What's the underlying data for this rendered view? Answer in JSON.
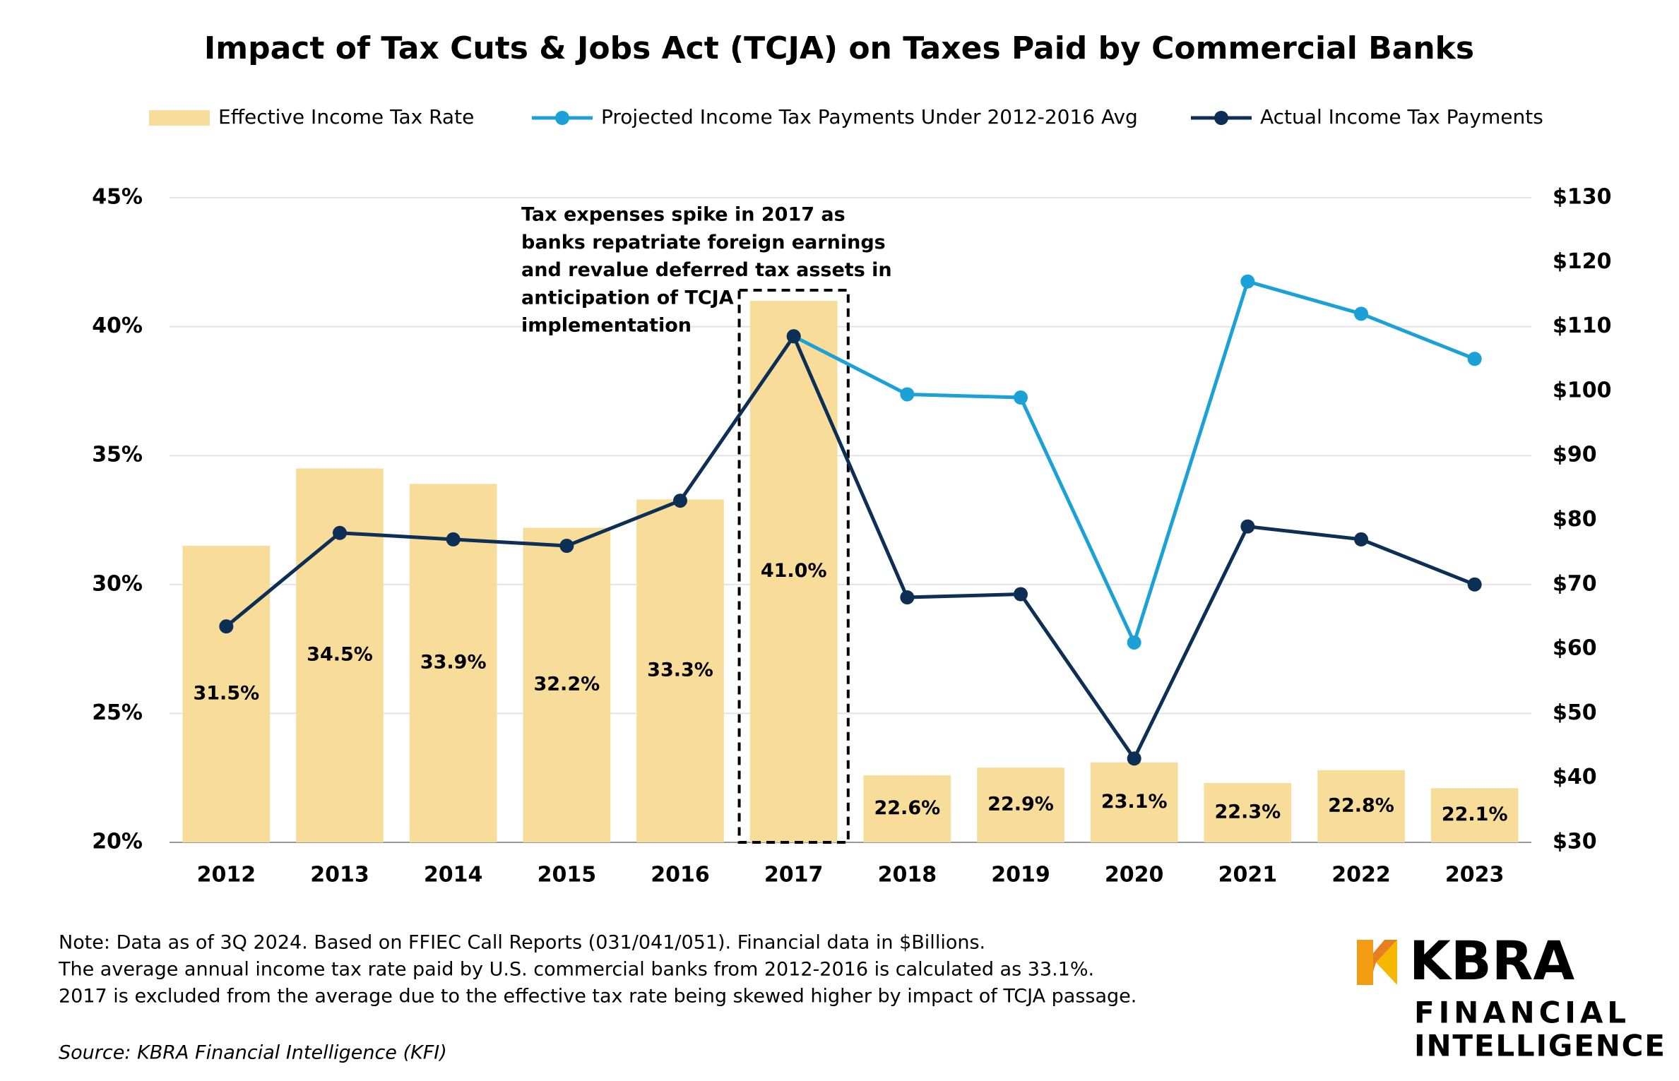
{
  "chart_data": {
    "type": "bar",
    "title": "Impact of Tax Cuts & Jobs Act (TCJA) on Taxes Paid by Commercial Banks",
    "categories": [
      "2012",
      "2013",
      "2014",
      "2015",
      "2016",
      "2017",
      "2018",
      "2019",
      "2020",
      "2021",
      "2022",
      "2023"
    ],
    "series": [
      {
        "name": "Effective Income Tax Rate",
        "type": "bar",
        "color": "#f8dc9a",
        "values": [
          31.5,
          34.5,
          33.9,
          32.2,
          33.3,
          41.0,
          22.6,
          22.9,
          23.1,
          22.3,
          22.8,
          22.1
        ],
        "value_labels": [
          "31.5%",
          "34.5%",
          "33.9%",
          "32.2%",
          "33.3%",
          "41.0%",
          "22.6%",
          "22.9%",
          "23.1%",
          "22.3%",
          "22.8%",
          "22.1%"
        ]
      },
      {
        "name": "Projected Income Tax Payments Under 2012-2016 Avg",
        "type": "line",
        "axis": "y2",
        "color": "#1ba1d8",
        "values": [
          null,
          null,
          null,
          null,
          null,
          108.5,
          99.5,
          99,
          61,
          117,
          112,
          105
        ]
      },
      {
        "name": "Actual Income Tax Payments",
        "type": "line",
        "axis": "y2",
        "color": "#0d2e55",
        "values": [
          63.5,
          78,
          77,
          76,
          83,
          108.5,
          68,
          68.5,
          43,
          79,
          77,
          70
        ]
      }
    ],
    "ylim": [
      20,
      45
    ],
    "yticks": [
      {
        "value": 20,
        "label": "20%"
      },
      {
        "value": 25,
        "label": "25%"
      },
      {
        "value": 30,
        "label": "30%"
      },
      {
        "value": 35,
        "label": "35%"
      },
      {
        "value": 40,
        "label": "40%"
      },
      {
        "value": 45,
        "label": "45%"
      }
    ],
    "y2lim": [
      30,
      130
    ],
    "y2ticks": [
      {
        "value": 30,
        "label": "$30"
      },
      {
        "value": 40,
        "label": "$40"
      },
      {
        "value": 50,
        "label": "$50"
      },
      {
        "value": 60,
        "label": "$60"
      },
      {
        "value": 70,
        "label": "$70"
      },
      {
        "value": 80,
        "label": "$80"
      },
      {
        "value": 90,
        "label": "$90"
      },
      {
        "value": 100,
        "label": "$100"
      },
      {
        "value": 110,
        "label": "$110"
      },
      {
        "value": 120,
        "label": "$120"
      },
      {
        "value": 130,
        "label": "$130"
      }
    ],
    "grid": true,
    "annotation": [
      "Tax expenses spike in 2017 as",
      "banks repatriate foreign earnings",
      "and revalue deferred tax assets in",
      "anticipation of TCJA",
      "implementation"
    ],
    "notes": [
      "Note: Data as of 3Q 2024. Based on FFIEC Call Reports (031/041/051). Financial data in $Billions.",
      "The average annual income tax rate paid by U.S. commercial banks from 2012-2016 is calculated as 33.1%.",
      "2017 is excluded from the average due to the effective tax rate being skewed higher by impact of TCJA passage."
    ],
    "source": "Source: KBRA Financial Intelligence (KFI)"
  },
  "logo": {
    "name": "KBRA",
    "line1": "FINANCIAL",
    "line2": "INTELLIGENCE"
  }
}
